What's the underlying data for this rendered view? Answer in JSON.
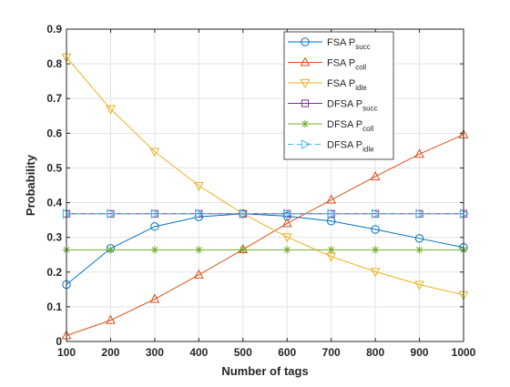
{
  "chart_data": {
    "type": "line",
    "xlabel": "Number of tags",
    "ylabel": "Probability",
    "xlim": [
      100,
      1000
    ],
    "ylim": [
      0,
      0.9
    ],
    "x_ticks": [
      "100",
      "200",
      "300",
      "400",
      "500",
      "600",
      "700",
      "800",
      "900",
      "1000"
    ],
    "y_ticks": [
      "0",
      "0.1",
      "0.2",
      "0.3",
      "0.4",
      "0.5",
      "0.6",
      "0.7",
      "0.8",
      "0.9"
    ],
    "x": [
      100,
      200,
      300,
      400,
      500,
      600,
      700,
      800,
      900,
      1000
    ],
    "grid": true,
    "legend_position": "top-right",
    "series": [
      {
        "name": "FSA P",
        "name_sub": "succ",
        "color": "#0072BD",
        "marker": "circle",
        "line_style": "solid",
        "values": [
          0.164,
          0.268,
          0.331,
          0.359,
          0.368,
          0.361,
          0.347,
          0.323,
          0.297,
          0.271
        ]
      },
      {
        "name": "FSA P",
        "name_sub": "coll",
        "color": "#D95319",
        "marker": "triangle-up",
        "line_style": "solid",
        "values": [
          0.017,
          0.061,
          0.122,
          0.192,
          0.265,
          0.34,
          0.408,
          0.475,
          0.54,
          0.596
        ]
      },
      {
        "name": "FSA P",
        "name_sub": "idle",
        "color": "#EDB120",
        "marker": "triangle-down",
        "line_style": "solid",
        "values": [
          0.819,
          0.67,
          0.547,
          0.449,
          0.368,
          0.301,
          0.245,
          0.201,
          0.164,
          0.134
        ]
      },
      {
        "name": "DFSA P",
        "name_sub": "succ",
        "color": "#7E2F8E",
        "marker": "square",
        "line_style": "solid",
        "values": [
          0.368,
          0.368,
          0.368,
          0.368,
          0.368,
          0.368,
          0.368,
          0.368,
          0.368,
          0.368
        ]
      },
      {
        "name": "DFSA P",
        "name_sub": "coll",
        "color": "#77AC30",
        "marker": "asterisk",
        "line_style": "solid",
        "values": [
          0.264,
          0.264,
          0.264,
          0.264,
          0.264,
          0.264,
          0.264,
          0.264,
          0.264,
          0.264
        ]
      },
      {
        "name": "DFSA P",
        "name_sub": "idle",
        "color": "#4DBEEE",
        "marker": "triangle-right",
        "line_style": "dashed",
        "values": [
          0.368,
          0.368,
          0.368,
          0.368,
          0.368,
          0.368,
          0.368,
          0.368,
          0.368,
          0.368
        ]
      }
    ]
  }
}
